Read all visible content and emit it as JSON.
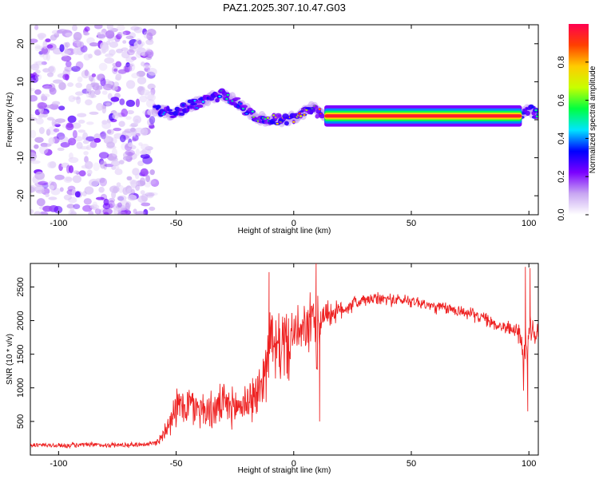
{
  "title": "PAZ1.2025.307.10.47.G03",
  "chart_data": [
    {
      "type": "heatmap",
      "name": "spectrogram",
      "xlabel": "Height of straight line (km)",
      "ylabel": "Frequency (Hz)",
      "xlim": [
        -112,
        104
      ],
      "ylim": [
        -25,
        25
      ],
      "xticks": [
        -100,
        -50,
        0,
        50,
        100
      ],
      "yticks": [
        -20,
        -10,
        0,
        10,
        20
      ],
      "xtick_labels": [
        "-100",
        "-50",
        "0",
        "50",
        "100"
      ],
      "ytick_labels": [
        "-20",
        "-10",
        "0",
        "10",
        "20"
      ],
      "noise_region_x": [
        -112,
        -59
      ],
      "ridge": {
        "x": [
          -59,
          -55,
          -50,
          -45,
          -40,
          -35,
          -30,
          -25,
          -20,
          -15,
          -10,
          -5,
          0,
          5,
          8,
          10,
          12,
          15,
          20,
          30,
          40,
          50,
          60,
          70,
          80,
          90,
          96,
          98,
          100,
          102,
          104
        ],
        "freq": [
          2.5,
          2,
          1.5,
          3.5,
          4.5,
          6,
          6.5,
          5,
          2.5,
          0.5,
          0,
          0,
          0.5,
          2,
          3.5,
          2,
          1.2,
          1,
          1,
          1,
          1,
          1,
          1,
          1,
          1,
          1,
          1.2,
          2,
          3,
          2,
          1.5
        ],
        "amplitude": [
          0.2,
          0.22,
          0.25,
          0.25,
          0.2,
          0.25,
          0.3,
          0.3,
          0.35,
          0.45,
          0.55,
          0.65,
          0.7,
          0.6,
          0.5,
          0.7,
          0.85,
          0.95,
          0.95,
          0.95,
          0.95,
          0.95,
          0.95,
          0.95,
          0.95,
          0.95,
          0.9,
          0.5,
          0.3,
          0.3,
          0.3
        ]
      },
      "colorbar": {
        "label": "Normalized spectral amplitude",
        "range": [
          0,
          1
        ],
        "ticks": [
          0.0,
          0.2,
          0.4,
          0.6,
          0.8
        ],
        "tick_labels": [
          "0.0",
          "0.2",
          "0.4",
          "0.6",
          "0.8"
        ],
        "colormap": [
          "#ffffff",
          "#c8a6f2",
          "#7b00ff",
          "#0000ff",
          "#00e5ff",
          "#00ff40",
          "#c8ff00",
          "#ffcc00",
          "#ff4000",
          "#ff0050"
        ]
      }
    },
    {
      "type": "line",
      "name": "snr",
      "xlabel": "Height of straight line (km)",
      "ylabel": "SNR (10 * v/v)",
      "xlim": [
        -112,
        104
      ],
      "ylim": [
        0,
        2850
      ],
      "xticks": [
        -100,
        -50,
        0,
        50,
        100
      ],
      "yticks": [
        500,
        1000,
        1500,
        2000,
        2500
      ],
      "xtick_labels": [
        "-100",
        "-50",
        "0",
        "50",
        "100"
      ],
      "ytick_labels": [
        "500",
        "1000",
        "1500",
        "2000",
        "2500"
      ],
      "color": "#ee2222",
      "series": [
        {
          "name": "SNR",
          "x": [
            -112,
            -100,
            -90,
            -80,
            -70,
            -60,
            -57,
            -55,
            -52,
            -50,
            -45,
            -40,
            -35,
            -30,
            -25,
            -20,
            -15,
            -12,
            -10,
            -8,
            -5,
            -2,
            0,
            3,
            6,
            8,
            10,
            12,
            15,
            20,
            25,
            30,
            35,
            40,
            45,
            50,
            55,
            60,
            65,
            70,
            75,
            80,
            85,
            90,
            95,
            97,
            98,
            100,
            101,
            104
          ],
          "y": [
            150,
            140,
            150,
            150,
            150,
            170,
            220,
            350,
            600,
            700,
            750,
            700,
            650,
            750,
            700,
            800,
            900,
            1300,
            1800,
            1500,
            1700,
            1600,
            1850,
            1800,
            1900,
            2000,
            1700,
            2100,
            2100,
            2150,
            2250,
            2300,
            2320,
            2320,
            2300,
            2300,
            2250,
            2200,
            2180,
            2150,
            2100,
            2050,
            1950,
            1900,
            1850,
            1700,
            1300,
            1800,
            1800,
            1800
          ],
          "noise": [
            40,
            40,
            40,
            40,
            40,
            40,
            80,
            150,
            280,
            300,
            350,
            300,
            300,
            320,
            300,
            350,
            400,
            500,
            500,
            500,
            600,
            500,
            400,
            350,
            450,
            450,
            700,
            300,
            200,
            150,
            130,
            100,
            100,
            100,
            100,
            100,
            100,
            100,
            100,
            100,
            100,
            100,
            100,
            100,
            120,
            300,
            500,
            300,
            200,
            150
          ]
        }
      ],
      "spikes": [
        {
          "x": -10.5,
          "y": 2720
        },
        {
          "x": 9.5,
          "y": 2850
        },
        {
          "x": 11,
          "y": 500
        },
        {
          "x": 98.5,
          "y": 2800
        },
        {
          "x": 99.5,
          "y": 650
        },
        {
          "x": 100.5,
          "y": 2780
        }
      ]
    }
  ]
}
